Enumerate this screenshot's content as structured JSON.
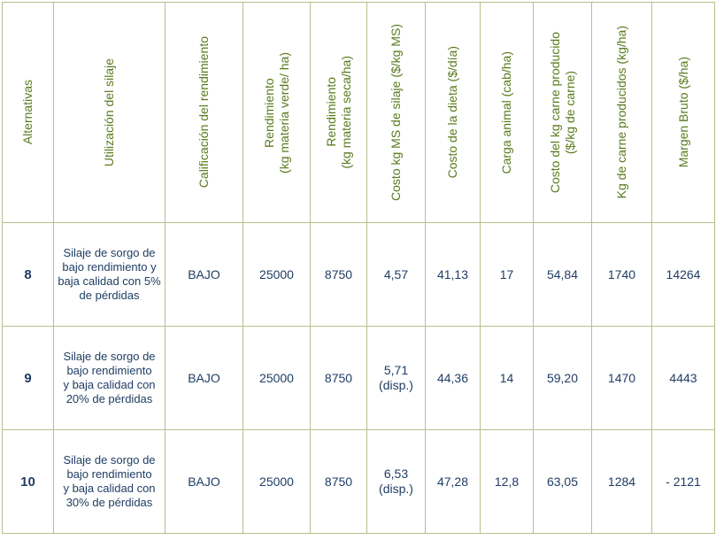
{
  "header": {
    "alternativas": "Alternativas",
    "utilizacion": "Utilización del silaje",
    "calificacion": "Calificación del rendimiento",
    "rend_verde_l1": "Rendimiento",
    "rend_verde_l2": "(kg materia verde/ ha)",
    "rend_seca_l1": "Rendimiento",
    "rend_seca_l2": "(kg materia seca/ha)",
    "costo_ms": "Costo kg MS de silaje ($/kg MS)",
    "costo_dieta": "Costo de la dieta ($/día)",
    "carga": "Carga animal (cab/ha)",
    "costo_carne_l1": "Costo del kg carne producido",
    "costo_carne_l2": "($/kg de carne)",
    "kg_carne": "Kg de carne producidos (kg/ha)",
    "margen": "Margen Bruto ($/ha)"
  },
  "rows": [
    {
      "alt": "8",
      "desc": [
        "Silaje de sorgo de",
        "bajo rendimiento y",
        "baja calidad con 5%",
        "de pérdidas"
      ],
      "calificacion": "BAJO",
      "rend_verde": "25000",
      "rend_seca": "8750",
      "costo_ms": "4,57",
      "costo_ms_note": "",
      "costo_dieta": "41,13",
      "carga": "17",
      "costo_carne": "54,84",
      "kg_carne": "1740",
      "margen": "14264"
    },
    {
      "alt": "9",
      "desc": [
        "Silaje de sorgo de",
        "bajo rendimiento",
        "y baja calidad con",
        "20% de pérdidas"
      ],
      "calificacion": "BAJO",
      "rend_verde": "25000",
      "rend_seca": "8750",
      "costo_ms": "5,71",
      "costo_ms_note": "(disp.)",
      "costo_dieta": "44,36",
      "carga": "14",
      "costo_carne": "59,20",
      "kg_carne": "1470",
      "margen": "4443"
    },
    {
      "alt": "10",
      "desc": [
        "Silaje de sorgo de",
        "bajo rendimiento",
        "y baja calidad con",
        "30% de pérdidas"
      ],
      "calificacion": "BAJO",
      "rend_verde": "25000",
      "rend_seca": "8750",
      "costo_ms": "6,53",
      "costo_ms_note": "(disp.)",
      "costo_dieta": "47,28",
      "carga": "12,8",
      "costo_carne": "63,05",
      "kg_carne": "1284",
      "margen": "- 2121"
    }
  ]
}
